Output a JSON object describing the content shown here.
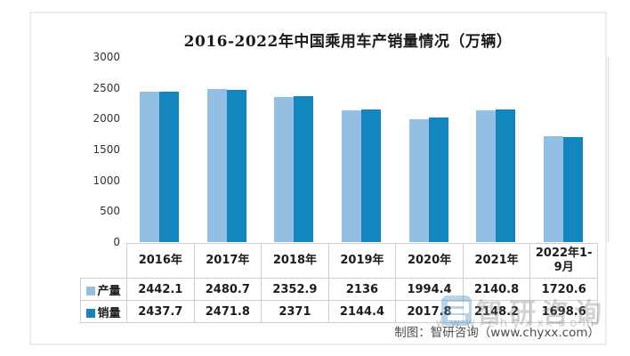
{
  "chart_data": {
    "type": "bar",
    "title": "2016-2022年中国乘用车产销量情况（万辆）",
    "categories": [
      "2016年",
      "2017年",
      "2018年",
      "2019年",
      "2020年",
      "2021年",
      "2022年1-9月"
    ],
    "series": [
      {
        "name": "产量",
        "color": "#93BFE2",
        "values": [
          2442.1,
          2480.7,
          2352.9,
          2136,
          1994.4,
          2140.8,
          1720.6
        ]
      },
      {
        "name": "销量",
        "color": "#1385BF",
        "values": [
          2437.7,
          2471.8,
          2371,
          2144.4,
          2017.8,
          2148.2,
          1698.6
        ]
      }
    ],
    "ylim": [
      0,
      3000
    ],
    "yticks": [
      0,
      500,
      1000,
      1500,
      2000,
      2500,
      3000
    ],
    "grid": false,
    "legend_position": "table-left"
  },
  "watermark": {
    "brand": "智研咨询",
    "url": "www.chyxx.com"
  },
  "footer": {
    "credit": "制图：智研咨询（www.chyxx.com）"
  }
}
